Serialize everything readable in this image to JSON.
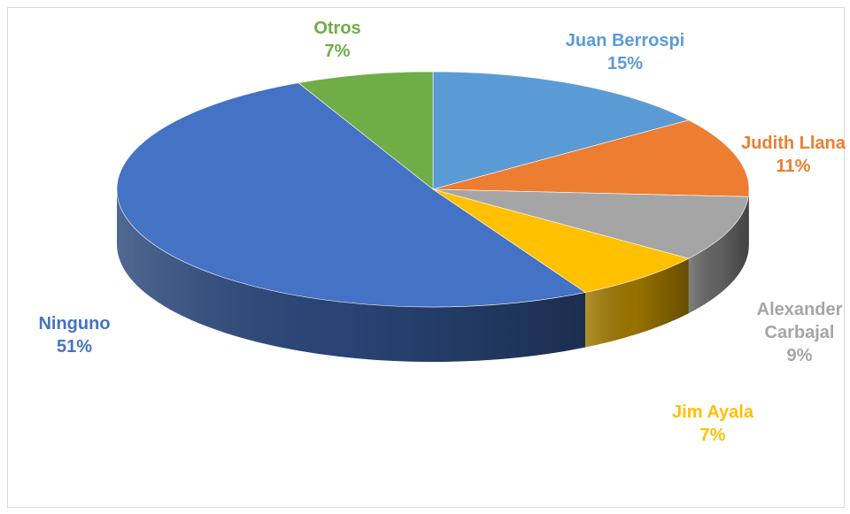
{
  "chart_data": {
    "type": "pie",
    "title": "",
    "legend": "none",
    "slices": [
      {
        "label": "Juan Berrospi",
        "label_lines": [
          "Juan Berrospi"
        ],
        "value": 15,
        "display": "15%",
        "color": "#5B9BD5"
      },
      {
        "label": "Judith Llana",
        "label_lines": [
          "Judith Llana"
        ],
        "value": 11,
        "display": "11%",
        "color": "#ED7D31"
      },
      {
        "label": "Alexander Carbajal",
        "label_lines": [
          "Alexander",
          "Carbajal"
        ],
        "value": 9,
        "display": "9%",
        "color": "#A5A5A5"
      },
      {
        "label": "Jim Ayala",
        "label_lines": [
          "Jim Ayala"
        ],
        "value": 7,
        "display": "7%",
        "color": "#FFC000"
      },
      {
        "label": "Ninguno",
        "label_lines": [
          "Ninguno"
        ],
        "value": 51,
        "display": "51%",
        "color": "#4472C4"
      },
      {
        "label": "Otros",
        "label_lines": [
          "Otros"
        ],
        "value": 7,
        "display": "7%",
        "color": "#70AD47"
      }
    ]
  }
}
